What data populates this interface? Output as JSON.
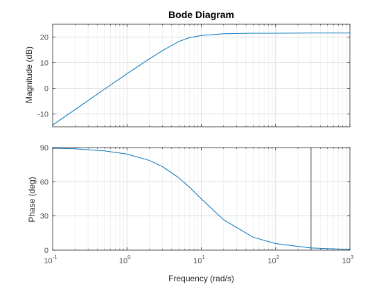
{
  "chart_data": [
    {
      "type": "line",
      "title": "Bode Diagram",
      "xlabel": "",
      "ylabel": "Magnitude (dB)",
      "xscale": "log",
      "xlim": [
        0.1,
        1000
      ],
      "ylim": [
        -15,
        25
      ],
      "yticks": [
        -10,
        0,
        10,
        20
      ],
      "grid": true,
      "series": [
        {
          "color": "#0072BD",
          "x": [
            0.1,
            0.2,
            0.5,
            1,
            2,
            3,
            5,
            7,
            10,
            20,
            50,
            100,
            300,
            1000
          ],
          "y": [
            -14.3,
            -8.3,
            -0.3,
            5.7,
            11.5,
            14.7,
            18.3,
            19.8,
            20.6,
            21.3,
            21.5,
            21.5,
            21.6,
            21.6
          ]
        }
      ]
    },
    {
      "type": "line",
      "title": "",
      "xlabel": "Frequency (rad/s)",
      "ylabel": "Phase (deg)",
      "xscale": "log",
      "xlim": [
        0.1,
        1000
      ],
      "ylim": [
        0,
        90
      ],
      "yticks": [
        0,
        30,
        60,
        90
      ],
      "xticks": [
        {
          "base": "10",
          "exp": "-1"
        },
        {
          "base": "10",
          "exp": "0"
        },
        {
          "base": "10",
          "exp": "1"
        },
        {
          "base": "10",
          "exp": "2"
        },
        {
          "base": "10",
          "exp": "3"
        }
      ],
      "grid": true,
      "series": [
        {
          "color": "#0072BD",
          "x": [
            0.1,
            0.2,
            0.5,
            1,
            2,
            3,
            5,
            7,
            10,
            20,
            50,
            100,
            300,
            1000
          ],
          "y": [
            89.4,
            88.9,
            87.1,
            84.3,
            78.7,
            73.3,
            63.4,
            55.0,
            45.0,
            26.6,
            11.3,
            5.7,
            1.9,
            0.6
          ]
        }
      ],
      "vline": {
        "x": 300,
        "color": "#262626"
      }
    }
  ]
}
